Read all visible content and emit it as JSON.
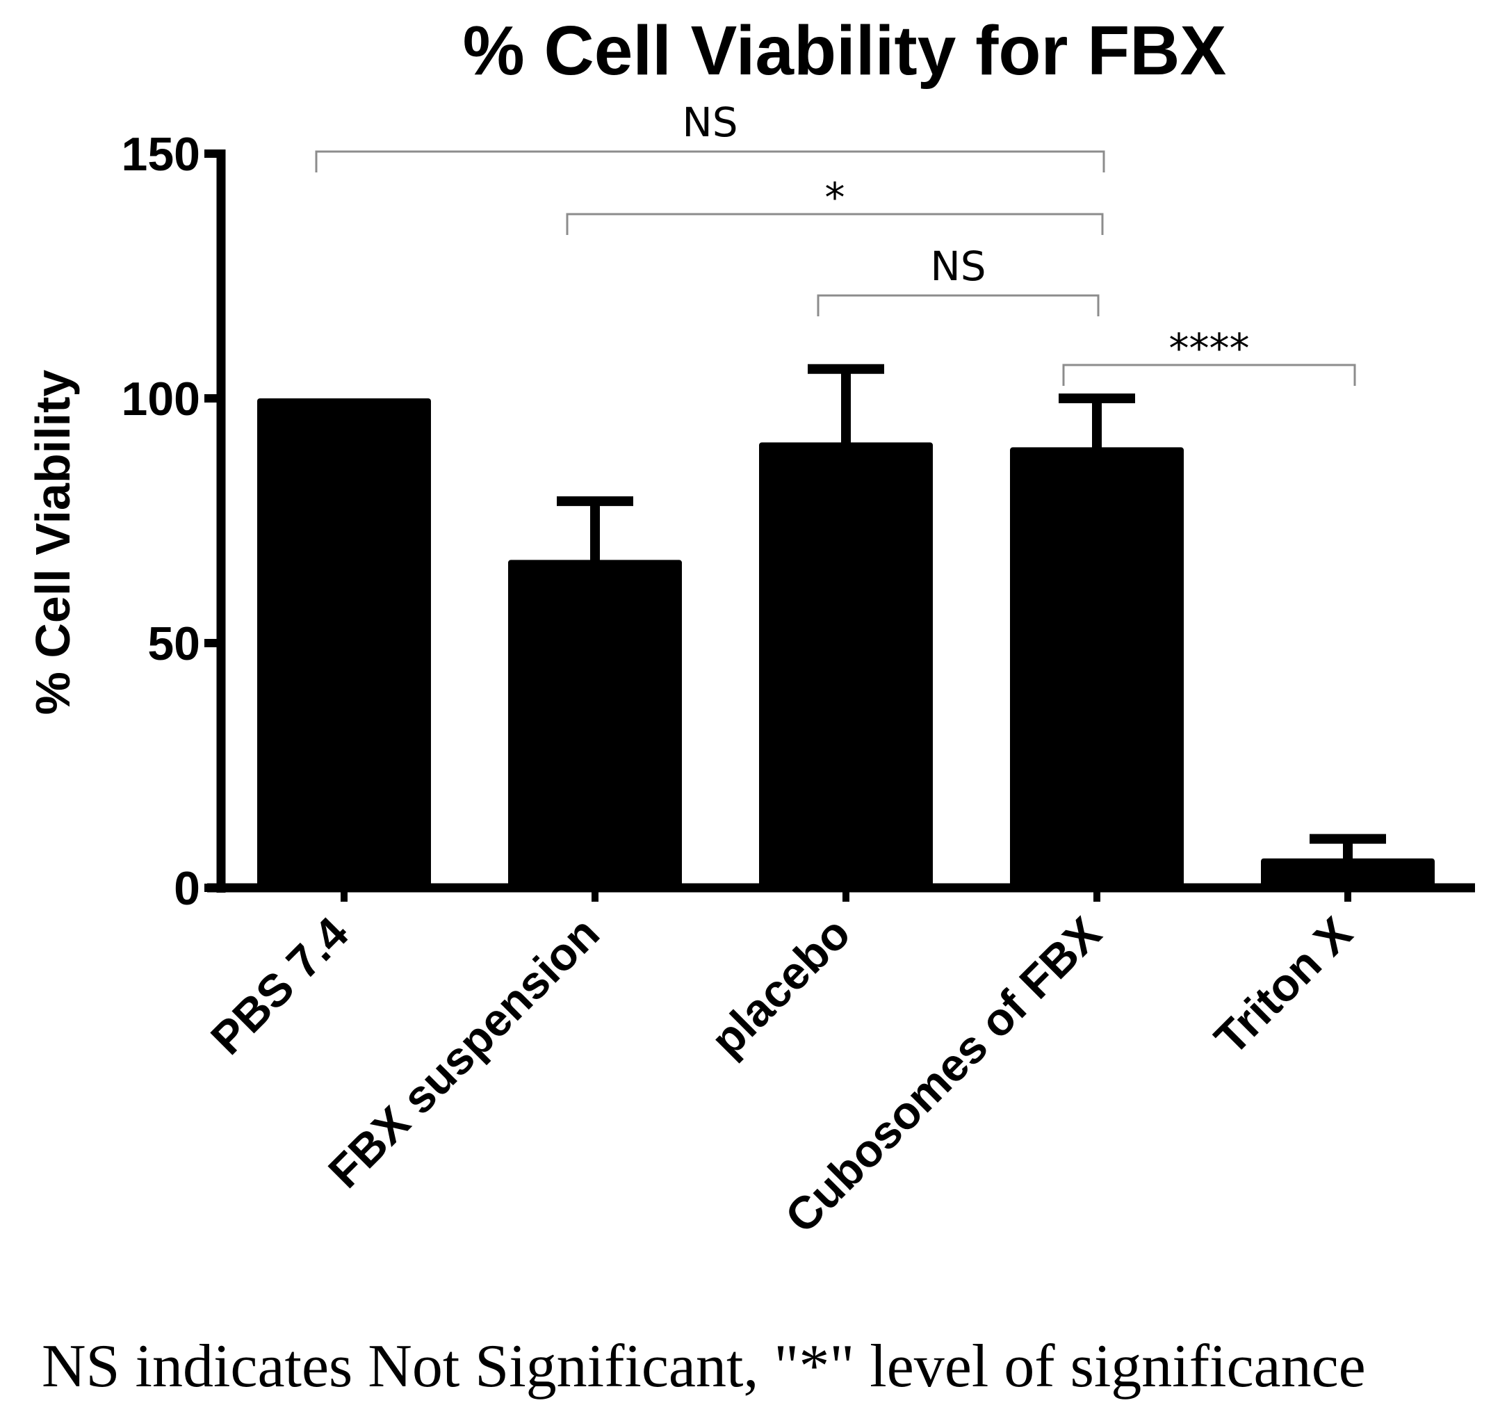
{
  "chart_data": {
    "type": "bar",
    "title": "% Cell Viability for FBX",
    "xlabel": "",
    "ylabel": "% Cell Viability",
    "ylim": [
      0,
      150
    ],
    "yticks": [
      0,
      50,
      100,
      150
    ],
    "categories": [
      "PBS 7.4",
      "FBX suspension",
      "placebo",
      "Cubosomes of FBX",
      "Triton X"
    ],
    "values": [
      100,
      67,
      91,
      90,
      6
    ],
    "errors": [
      0,
      12,
      15,
      10,
      4
    ],
    "bar_color": "#000000",
    "comparisons": [
      {
        "from": "PBS 7.4",
        "to": "Cubosomes of FBX",
        "label": "NS"
      },
      {
        "from": "FBX suspension",
        "to": "Cubosomes of FBX",
        "label": "*"
      },
      {
        "from": "placebo",
        "to": "Cubosomes of FBX",
        "label": "NS"
      },
      {
        "from": "Cubosomes of FBX",
        "to": "Triton X",
        "label": "****"
      }
    ]
  },
  "caption": "NS indicates Not Significant, \"*\" level of significance"
}
